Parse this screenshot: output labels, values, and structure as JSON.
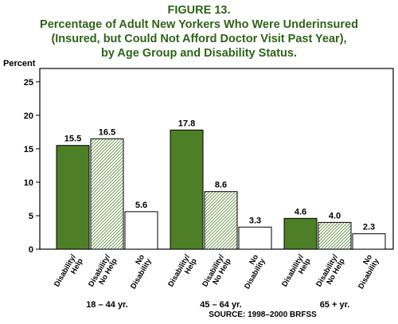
{
  "figure_label": "FIGURE 13.",
  "title_lines": [
    "Percentage of Adult New Yorkers Who Were Underinsured",
    "(Insured, but Could Not Afford Doctor Visit Past Year),",
    "by Age Group and Disability Status."
  ],
  "source": "SOURCE:   1998–2000  BRFSS",
  "colors": {
    "title": "#2e6417",
    "disability_help": "#4d7f26",
    "disability_no_help_hatch": "#5a8a3a",
    "no_disability": "#ffffff"
  },
  "chart_data": {
    "type": "bar",
    "ylabel": "Percent",
    "ylim": [
      0,
      27
    ],
    "yticks": [
      0,
      5,
      10,
      15,
      20,
      25
    ],
    "grid": false,
    "groups": [
      "18 – 44  yr.",
      "45 – 64  yr.",
      "65 +  yr."
    ],
    "series": [
      {
        "name": "Disability/ Help",
        "label_lines": [
          "Disability/",
          "Help"
        ],
        "fill": "solid",
        "values": [
          15.5,
          17.8,
          4.6
        ],
        "value_labels": [
          "15.5",
          "17.8",
          "4.6"
        ]
      },
      {
        "name": "Disability/ No Help",
        "label_lines": [
          "Disability/",
          "No Help"
        ],
        "fill": "hatch",
        "values": [
          16.5,
          8.6,
          4.0
        ],
        "value_labels": [
          "16.5",
          "8.6",
          "4.0"
        ]
      },
      {
        "name": "No Disability",
        "label_lines": [
          "No",
          "Disability"
        ],
        "fill": "white",
        "values": [
          5.6,
          3.3,
          2.3
        ],
        "value_labels": [
          "5.6",
          "3.3",
          "2.3"
        ]
      }
    ]
  }
}
